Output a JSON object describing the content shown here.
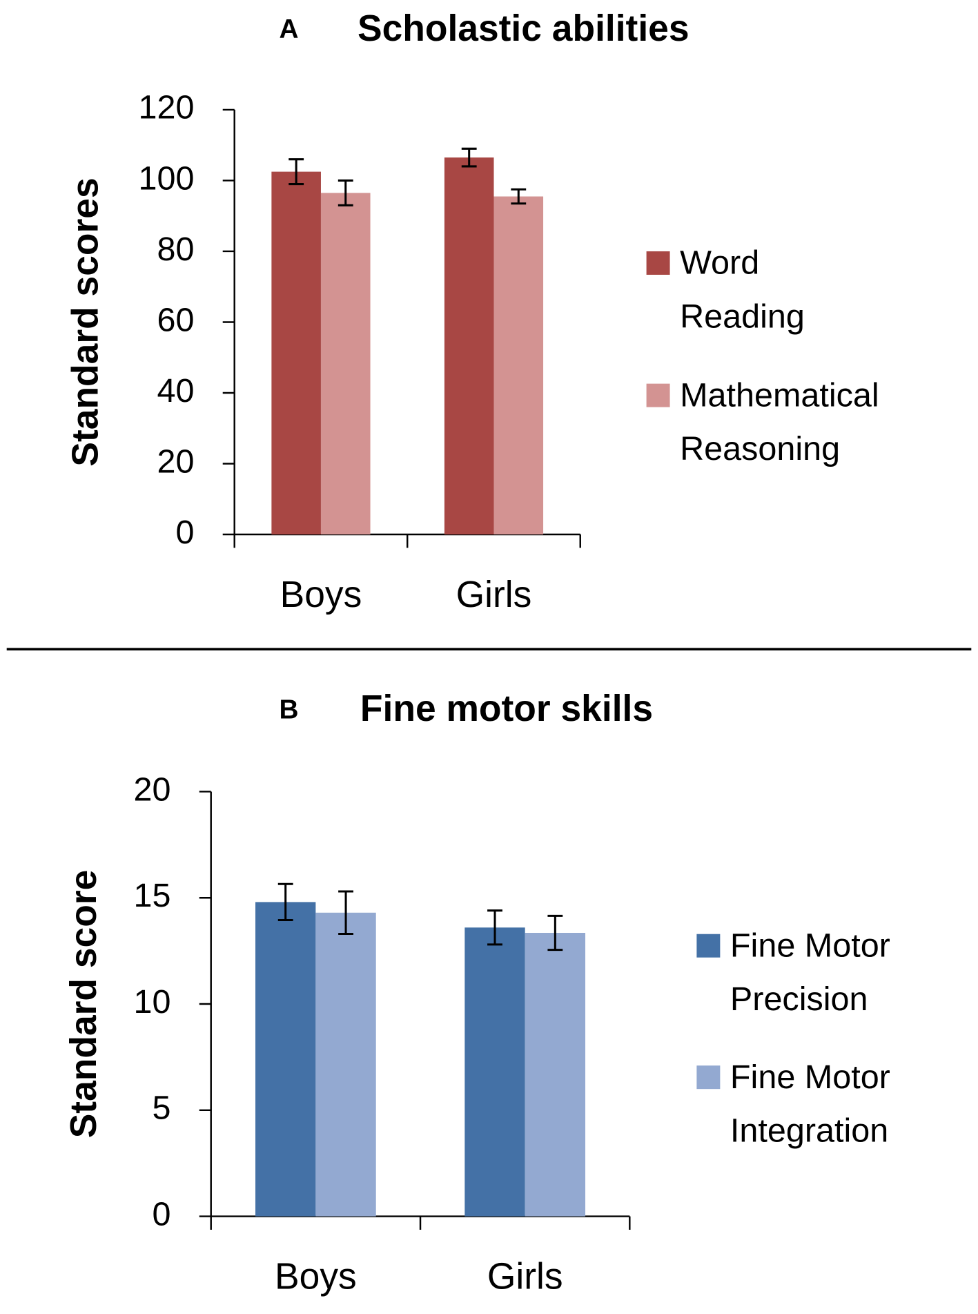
{
  "chart_data": [
    {
      "type": "bar",
      "panel": "A",
      "title": "Scholastic abilities",
      "y_label": "Standard scores",
      "categories": [
        "Boys",
        "Girls"
      ],
      "series": [
        {
          "name": "Word Reading",
          "color": "#a84744",
          "values": [
            102.5,
            106.5
          ],
          "errors": [
            3.5,
            2.5
          ]
        },
        {
          "name": "Mathematical Reasoning",
          "color": "#d39392",
          "values": [
            96.5,
            95.5
          ],
          "errors": [
            3.5,
            2
          ]
        }
      ],
      "ylim": [
        0,
        120
      ],
      "yticks": [
        0,
        20,
        40,
        60,
        80,
        100,
        120
      ],
      "grid": false,
      "legend": "right"
    },
    {
      "type": "bar",
      "panel": "B",
      "title": "Fine motor skills",
      "y_label": "Standard score",
      "categories": [
        "Boys",
        "Girls"
      ],
      "series": [
        {
          "name": "Fine Motor Precision",
          "color": "#4471a6",
          "values": [
            14.8,
            13.6
          ],
          "errors": [
            0.85,
            0.8
          ]
        },
        {
          "name": "Fine Motor Integration",
          "color": "#93a9d1",
          "values": [
            14.3,
            13.35
          ],
          "errors": [
            1.0,
            0.8
          ]
        }
      ],
      "ylim": [
        0,
        20
      ],
      "yticks": [
        0,
        5,
        10,
        15,
        20
      ],
      "grid": false,
      "legend": "right"
    }
  ]
}
